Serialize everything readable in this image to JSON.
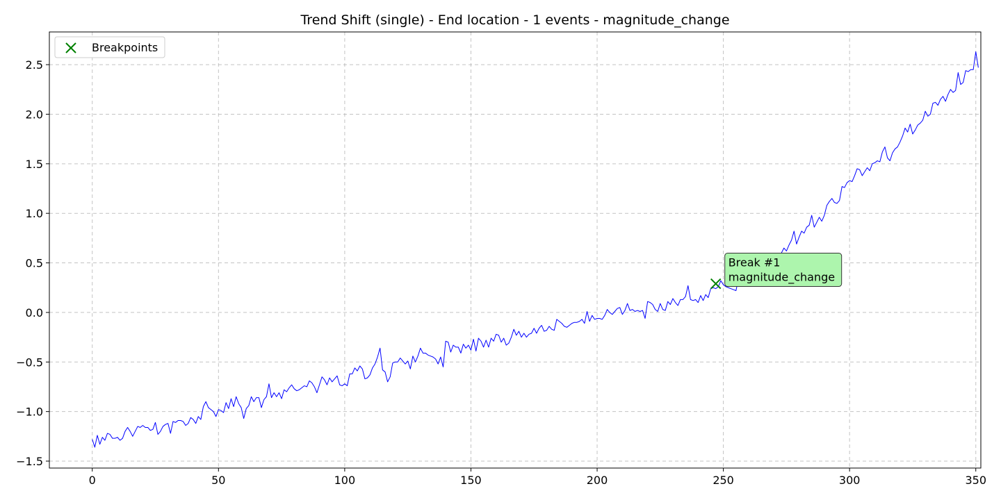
{
  "chart_data": {
    "type": "line",
    "title": "Trend Shift (single) - End location - 1 events - magnitude_change",
    "xlabel": "",
    "ylabel": "",
    "xlim": [
      -17,
      352
    ],
    "ylim": [
      -1.57,
      2.83
    ],
    "x_ticks": [
      0,
      50,
      100,
      150,
      200,
      250,
      300,
      350
    ],
    "x_tick_labels": [
      "0",
      "50",
      "100",
      "150",
      "200",
      "250",
      "300",
      "350"
    ],
    "y_ticks": [
      -1.5,
      -1.0,
      -0.5,
      0.0,
      0.5,
      1.0,
      1.5,
      2.0,
      2.5
    ],
    "y_tick_labels": [
      "−1.5",
      "−1.0",
      "−0.5",
      "0.0",
      "0.5",
      "1.0",
      "1.5",
      "2.0",
      "2.5"
    ],
    "grid": true,
    "legend_position": "top-left",
    "legend": [
      {
        "label": "Breakpoints",
        "marker": "x",
        "color": "#008000"
      }
    ],
    "series": [
      {
        "color": "#0000ff",
        "x_start": 0,
        "x_step": 1,
        "y": [
          -1.28,
          -1.36,
          -1.24,
          -1.33,
          -1.26,
          -1.29,
          -1.22,
          -1.23,
          -1.27,
          -1.27,
          -1.26,
          -1.29,
          -1.27,
          -1.2,
          -1.16,
          -1.2,
          -1.25,
          -1.2,
          -1.15,
          -1.16,
          -1.14,
          -1.16,
          -1.16,
          -1.19,
          -1.18,
          -1.11,
          -1.23,
          -1.2,
          -1.15,
          -1.13,
          -1.12,
          -1.22,
          -1.1,
          -1.11,
          -1.09,
          -1.09,
          -1.1,
          -1.14,
          -1.12,
          -1.06,
          -1.08,
          -1.12,
          -1.05,
          -1.08,
          -0.95,
          -0.9,
          -0.96,
          -0.98,
          -1.0,
          -1.05,
          -0.98,
          -0.99,
          -1.01,
          -0.91,
          -0.97,
          -0.87,
          -0.95,
          -0.85,
          -0.92,
          -0.96,
          -1.07,
          -0.97,
          -0.94,
          -0.85,
          -0.9,
          -0.86,
          -0.86,
          -0.96,
          -0.88,
          -0.85,
          -0.72,
          -0.86,
          -0.81,
          -0.85,
          -0.81,
          -0.87,
          -0.78,
          -0.8,
          -0.76,
          -0.73,
          -0.77,
          -0.79,
          -0.78,
          -0.76,
          -0.74,
          -0.75,
          -0.69,
          -0.71,
          -0.75,
          -0.81,
          -0.73,
          -0.65,
          -0.68,
          -0.73,
          -0.66,
          -0.7,
          -0.67,
          -0.64,
          -0.73,
          -0.74,
          -0.72,
          -0.74,
          -0.62,
          -0.62,
          -0.56,
          -0.59,
          -0.54,
          -0.57,
          -0.67,
          -0.66,
          -0.63,
          -0.56,
          -0.52,
          -0.45,
          -0.36,
          -0.58,
          -0.6,
          -0.7,
          -0.65,
          -0.51,
          -0.5,
          -0.5,
          -0.46,
          -0.49,
          -0.52,
          -0.49,
          -0.57,
          -0.44,
          -0.5,
          -0.44,
          -0.36,
          -0.41,
          -0.41,
          -0.43,
          -0.44,
          -0.45,
          -0.47,
          -0.52,
          -0.45,
          -0.55,
          -0.29,
          -0.3,
          -0.4,
          -0.33,
          -0.35,
          -0.35,
          -0.41,
          -0.32,
          -0.36,
          -0.33,
          -0.38,
          -0.27,
          -0.39,
          -0.26,
          -0.29,
          -0.35,
          -0.28,
          -0.35,
          -0.26,
          -0.29,
          -0.22,
          -0.23,
          -0.3,
          -0.26,
          -0.33,
          -0.31,
          -0.25,
          -0.17,
          -0.23,
          -0.19,
          -0.25,
          -0.21,
          -0.25,
          -0.22,
          -0.21,
          -0.16,
          -0.21,
          -0.16,
          -0.13,
          -0.19,
          -0.18,
          -0.14,
          -0.17,
          -0.18,
          -0.07,
          -0.09,
          -0.11,
          -0.14,
          -0.15,
          -0.13,
          -0.11,
          -0.1,
          -0.1,
          -0.09,
          -0.07,
          -0.11,
          0.01,
          -0.09,
          -0.03,
          -0.07,
          -0.06,
          -0.06,
          -0.07,
          -0.03,
          0.03,
          0.0,
          -0.02,
          0.01,
          0.04,
          0.05,
          -0.02,
          0.02,
          0.09,
          0.02,
          0.03,
          0.01,
          0.02,
          0.01,
          0.02,
          -0.06,
          0.11,
          0.1,
          0.08,
          0.03,
          0.01,
          0.09,
          0.03,
          0.02,
          0.11,
          0.08,
          0.14,
          0.1,
          0.07,
          0.13,
          0.13,
          0.16,
          0.27,
          0.13,
          0.12,
          0.13,
          0.1,
          0.17,
          0.12,
          0.18,
          0.15,
          0.24,
          0.25,
          0.24,
          0.26,
          0.32,
          0.28,
          0.26,
          0.25,
          0.24,
          0.23,
          0.22,
          0.34,
          0.35,
          0.32,
          0.28,
          0.3,
          0.4,
          0.36,
          0.41,
          0.45,
          0.5,
          0.52,
          0.56,
          0.48,
          0.58,
          0.55,
          0.51,
          0.54,
          0.6,
          0.65,
          0.62,
          0.68,
          0.73,
          0.82,
          0.69,
          0.76,
          0.82,
          0.8,
          0.86,
          0.88,
          0.98,
          0.86,
          0.91,
          0.96,
          0.92,
          0.98,
          1.08,
          1.12,
          1.15,
          1.11,
          1.1,
          1.13,
          1.27,
          1.26,
          1.31,
          1.33,
          1.32,
          1.38,
          1.45,
          1.44,
          1.38,
          1.42,
          1.46,
          1.43,
          1.5,
          1.51,
          1.53,
          1.52,
          1.62,
          1.67,
          1.56,
          1.53,
          1.61,
          1.65,
          1.67,
          1.72,
          1.78,
          1.86,
          1.82,
          1.9,
          1.8,
          1.84,
          1.89,
          1.91,
          1.94,
          2.03,
          1.98,
          2.0,
          2.11,
          2.12,
          2.09,
          2.15,
          2.18,
          2.13,
          2.2,
          2.25,
          2.22,
          2.24,
          2.42,
          2.3,
          2.32,
          2.44,
          2.43,
          2.45,
          2.45,
          2.63,
          2.47
        ]
      }
    ],
    "breakpoints": [
      {
        "x": 247,
        "y": 0.29
      }
    ],
    "annotations": [
      {
        "x": 247,
        "y": 0.29,
        "lines": [
          "Break #1",
          "magnitude_change"
        ],
        "box_color": "#adf5ad"
      }
    ]
  }
}
